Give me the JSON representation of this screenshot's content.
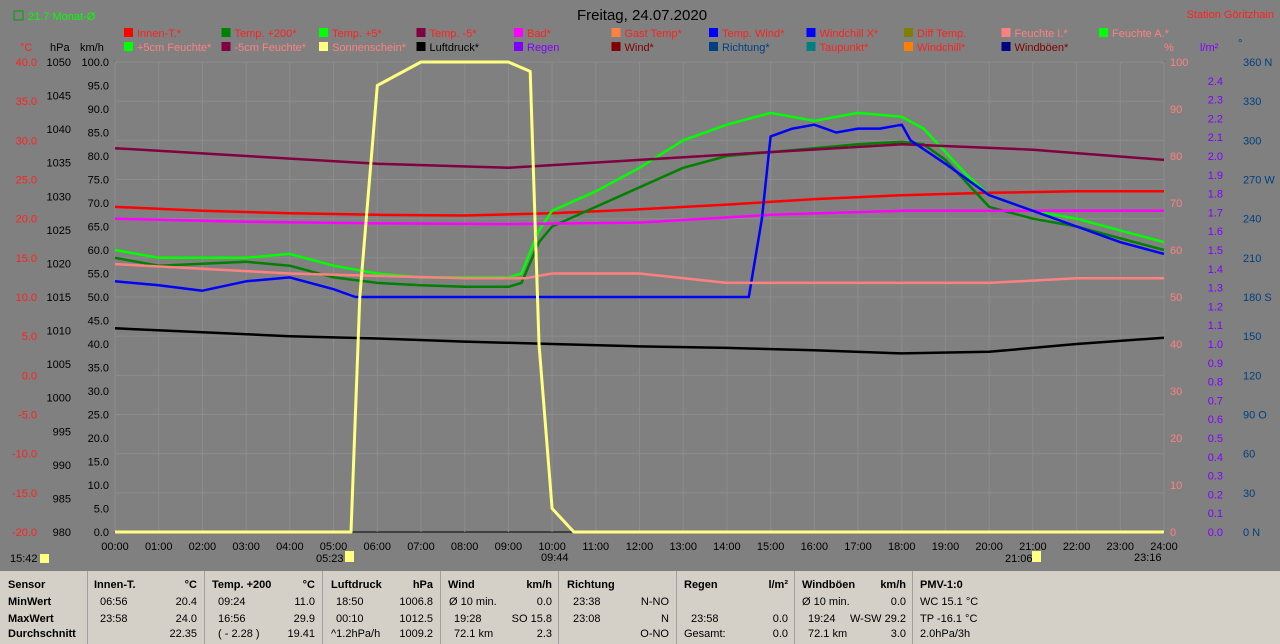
{
  "header": {
    "title": "Freitag, 24.07.2020",
    "station": "Station Göritzhain",
    "month_avg": "21.7 Monat-Ø"
  },
  "axes": {
    "celsius_unit": "°C",
    "hpa_unit": "hPa",
    "kmh_unit": "km/h",
    "percent_unit": "%",
    "rain_unit": "l/m²",
    "dir_unit": "°",
    "celsius_ticks": [
      "40.0",
      "35.0",
      "30.0",
      "25.0",
      "20.0",
      "15.0",
      "10.0",
      "5.0",
      "0.0",
      "-5.0",
      "-10.0",
      "-15.0",
      "-20.0"
    ],
    "hpa_ticks": [
      "1050",
      "1045",
      "1040",
      "1035",
      "1030",
      "1025",
      "1020",
      "1015",
      "1010",
      "1005",
      "1000",
      "995",
      "990",
      "985",
      "980"
    ],
    "kmh_ticks": [
      "100.0",
      "95.0",
      "90.0",
      "85.0",
      "80.0",
      "75.0",
      "70.0",
      "65.0",
      "60.0",
      "55.0",
      "50.0",
      "45.0",
      "40.0",
      "35.0",
      "30.0",
      "25.0",
      "20.0",
      "15.0",
      "10.0",
      "5.0",
      "0.0"
    ],
    "percent_ticks": [
      "100",
      "90",
      "80",
      "70",
      "60",
      "50",
      "40",
      "30",
      "20",
      "10",
      "0"
    ],
    "rain_ticks": [
      "2.4",
      "2.3",
      "2.2",
      "2.1",
      "2.0",
      "1.9",
      "1.8",
      "1.7",
      "1.6",
      "1.5",
      "1.4",
      "1.3",
      "1.2",
      "1.1",
      "1.0",
      "0.9",
      "0.8",
      "0.7",
      "0.6",
      "0.5",
      "0.4",
      "0.3",
      "0.2",
      "0.1",
      "0.0"
    ],
    "dir_ticks": [
      "360 N",
      "330",
      "300",
      "270 W",
      "240",
      "210",
      "180 S",
      "150",
      "120",
      "90 O",
      "60",
      "30",
      "0 N"
    ],
    "time_ticks": [
      "00:00",
      "01:00",
      "02:00",
      "03:00",
      "04:00",
      "05:00",
      "06:00",
      "07:00",
      "08:00",
      "09:00",
      "10:00",
      "11:00",
      "12:00",
      "13:00",
      "14:00",
      "15:00",
      "16:00",
      "17:00",
      "18:00",
      "19:00",
      "20:00",
      "21:00",
      "22:00",
      "23:00",
      "24:00"
    ]
  },
  "markers": {
    "left_time": "15:42",
    "sunrise": "05:23",
    "marker_0944": "09:44",
    "sunset": "21:06",
    "marker_2316": "23:16"
  },
  "legend": {
    "row1": [
      {
        "label": "Innen-T.*",
        "color": "#ff0000",
        "text": "#ff2020"
      },
      {
        "label": "Temp. +200*",
        "color": "#008000",
        "text": "#ff2020"
      },
      {
        "label": "Temp. +5*",
        "color": "#00ff00",
        "text": "#ff2020"
      },
      {
        "label": "Temp. -5*",
        "color": "#800040",
        "text": "#ff2020"
      },
      {
        "label": "Bad*",
        "color": "#ff00ff",
        "text": "#ff2020"
      },
      {
        "label": "Gast Temp*",
        "color": "#ff8040",
        "text": "#ff2020"
      },
      {
        "label": "Temp. Wind*",
        "color": "#0000ff",
        "text": "#ff2020"
      },
      {
        "label": "Windchill X*",
        "color": "#0000ff",
        "text": "#ff2020"
      },
      {
        "label": "Diff Temp.",
        "color": "#808000",
        "text": "#ff2020"
      },
      {
        "label": "Feuchte I.*",
        "color": "#ff8080",
        "text": "#ff8080"
      },
      {
        "label": "Feuchte A.*",
        "color": "#00ff00",
        "text": "#ff8080"
      }
    ],
    "row2": [
      {
        "label": "+5cm Feuchte*",
        "color": "#00ff00",
        "text": "#ff8080"
      },
      {
        "label": "-5cm Feuchte*",
        "color": "#800040",
        "text": "#ff8080"
      },
      {
        "label": "Sonnenschein*",
        "color": "#ffff80",
        "text": "#ff8080"
      },
      {
        "label": "Luftdruck*",
        "color": "#000000",
        "text": "#000000"
      },
      {
        "label": "Regen",
        "color": "#8000ff",
        "text": "#8000ff"
      },
      {
        "label": "Wind*",
        "color": "#800000",
        "text": "#800000"
      },
      {
        "label": "Richtung*",
        "color": "#004080",
        "text": "#004080"
      },
      {
        "label": "Taupunkt*",
        "color": "#008080",
        "text": "#ff2020"
      },
      {
        "label": "Windchill*",
        "color": "#ff8000",
        "text": "#ff2020"
      },
      {
        "label": "Windböen*",
        "color": "#000080",
        "text": "#800000"
      }
    ]
  },
  "chart_data": {
    "type": "line",
    "title": "Freitag, 24.07.2020",
    "x_unit": "hours",
    "xlim": [
      0,
      24
    ],
    "ylim_celsius": [
      -20,
      40
    ],
    "ylim_percent": [
      0,
      100
    ],
    "series": [
      {
        "name": "Innen-T.*",
        "axis": "celsius",
        "color": "#ff0000",
        "x": [
          0,
          2,
          4,
          6,
          8,
          10,
          12,
          14,
          16,
          18,
          20,
          22,
          24
        ],
        "values": [
          21.5,
          21.0,
          20.7,
          20.5,
          20.4,
          20.7,
          21.2,
          21.8,
          22.5,
          23.0,
          23.3,
          23.5,
          23.5
        ]
      },
      {
        "name": "Temp. +200*",
        "axis": "celsius",
        "color": "#008000",
        "x": [
          0,
          1,
          3,
          4,
          5,
          6,
          7,
          8,
          9,
          9.3,
          9.7,
          10,
          11,
          12,
          13,
          14,
          15,
          16,
          17,
          18,
          18.5,
          19,
          19.5,
          20,
          21,
          22,
          23,
          24
        ],
        "values": [
          15.0,
          14.0,
          14.5,
          14.0,
          12.5,
          11.8,
          11.5,
          11.3,
          11.3,
          11.8,
          17.0,
          19.0,
          21.5,
          24.0,
          26.5,
          28.0,
          28.5,
          29.0,
          29.5,
          29.8,
          29.5,
          27.5,
          24.5,
          21.5,
          20.0,
          19.0,
          17.5,
          16.0
        ]
      },
      {
        "name": "Temp. +5*",
        "axis": "celsius",
        "color": "#00ff00",
        "x": [
          0,
          1,
          3,
          4,
          5,
          6,
          7,
          8,
          9,
          9.3,
          9.7,
          10,
          11,
          12,
          13,
          14,
          15,
          16,
          17,
          18,
          18.5,
          19,
          19.5,
          20,
          21,
          22,
          23,
          24
        ],
        "values": [
          16.0,
          15.0,
          15.0,
          15.5,
          14.0,
          13.0,
          12.5,
          12.5,
          12.5,
          13.0,
          18.5,
          21.0,
          23.5,
          26.5,
          30.0,
          32.0,
          33.5,
          32.5,
          33.5,
          33.0,
          31.5,
          28.5,
          25.5,
          23.0,
          21.0,
          20.0,
          18.5,
          17.0
        ]
      },
      {
        "name": "Temp. -5*",
        "axis": "celsius",
        "color": "#800040",
        "x": [
          0,
          3,
          6,
          9,
          12,
          15,
          18,
          21,
          24
        ],
        "values": [
          29.0,
          28.0,
          27.0,
          26.5,
          27.5,
          28.5,
          29.5,
          28.8,
          27.5
        ]
      },
      {
        "name": "Bad*",
        "axis": "celsius",
        "color": "#ff00ff",
        "x": [
          0,
          3,
          6,
          9,
          12,
          15,
          18,
          21,
          24
        ],
        "values": [
          20.0,
          19.6,
          19.4,
          19.3,
          19.5,
          20.5,
          21.0,
          21.0,
          21.0
        ]
      },
      {
        "name": "Temp. Wind*",
        "axis": "celsius",
        "color": "#0000ff",
        "x": [
          0,
          1,
          2,
          3,
          4,
          5,
          5.5,
          6,
          8,
          10,
          12,
          14,
          14.5,
          14.8,
          15.0,
          15.5,
          16,
          16.5,
          17,
          17.5,
          18,
          18.2,
          18.6,
          19,
          20,
          21,
          22,
          23,
          24
        ],
        "values": [
          12.0,
          11.5,
          10.8,
          12.0,
          12.5,
          11.0,
          10.0,
          10.0,
          10.0,
          10.0,
          10.0,
          10.0,
          10.0,
          20.0,
          30.5,
          31.5,
          32.0,
          31.0,
          31.5,
          31.5,
          32.0,
          30.0,
          28.5,
          27.0,
          23.0,
          21.0,
          19.0,
          17.0,
          15.5
        ]
      },
      {
        "name": "Luftdruck*",
        "axis": "celsius",
        "color": "#000000",
        "x": [
          0,
          2,
          4,
          6,
          8,
          10,
          12,
          14,
          16,
          18,
          20,
          22,
          24
        ],
        "values": [
          6.0,
          5.5,
          5.0,
          4.7,
          4.3,
          4.0,
          3.7,
          3.5,
          3.2,
          2.8,
          3.0,
          4.0,
          4.8
        ]
      },
      {
        "name": "Feuchte I.*",
        "axis": "percent",
        "color": "#ff8080",
        "x": [
          0,
          4,
          8,
          9.4,
          10,
          12,
          14,
          16,
          18,
          20,
          22,
          24
        ],
        "values": [
          57,
          55,
          54,
          54,
          55,
          55,
          53,
          53,
          53,
          53,
          54,
          54
        ]
      },
      {
        "name": "Sonnenschein*",
        "axis": "percent",
        "color": "#ffff80",
        "x": [
          0,
          5.4,
          5.6,
          6,
          7,
          8,
          9,
          9.5,
          9.7,
          10,
          10.5,
          24
        ],
        "values": [
          0,
          0,
          50,
          95,
          100,
          100,
          100,
          98,
          40,
          5,
          0,
          0
        ]
      }
    ]
  },
  "stats": {
    "row_labels": {
      "sensor": "Sensor",
      "min": "MinWert",
      "max": "MaxWert",
      "avg": "Durchschnitt"
    },
    "innen": {
      "title": "Innen-T.",
      "unit": "°C",
      "min_time": "06:56",
      "min_val": "20.4",
      "max_time": "23:58",
      "max_val": "24.0",
      "avg_val": "22.35"
    },
    "temp200": {
      "title": "Temp. +200",
      "unit": "°C",
      "min_time": "09:24",
      "min_val": "11.0",
      "max_time": "16:56",
      "max_val": "29.9",
      "avg_extra": "( - 2.28 )",
      "avg_val": "19.41"
    },
    "luftdruck": {
      "title": "Luftdruck",
      "unit": "hPa",
      "min_time": "18:50",
      "min_val": "1006.8",
      "max_time": "00:10",
      "max_val": "1012.5",
      "avg_extra": "^1.2hPa/h",
      "avg_val": "1009.2"
    },
    "wind": {
      "title": "Wind",
      "unit": "km/h",
      "min_label": "Ø 10 min.",
      "min_val": "0.0",
      "max_time": "19:28",
      "max_extra": "SO 15.8",
      "avg_extra": "72.1 km",
      "avg_val": "2.3"
    },
    "richtung": {
      "title": "Richtung",
      "min_time": "23:38",
      "min_val": "N-NO",
      "max_time": "23:08",
      "max_val": "N",
      "avg_val": "O-NO"
    },
    "regen": {
      "title": "Regen",
      "unit": "l/m²",
      "max_time": "23:58",
      "max_val": "0.0",
      "avg_label": "Gesamt:",
      "avg_val": "0.0"
    },
    "windboeen": {
      "title": "Windböen",
      "unit": "km/h",
      "min_label": "Ø 10 min.",
      "min_val": "0.0",
      "max_time": "19:24",
      "max_extra": "W-SW 29.2",
      "avg_extra": "72.1 km",
      "avg_val": "3.0"
    },
    "pmv": {
      "title": "PMV-1:0",
      "min_val": "WC 15.1 °C",
      "max_val": "TP -16.1 °C",
      "avg_val": "2.0hPa/3h"
    }
  }
}
